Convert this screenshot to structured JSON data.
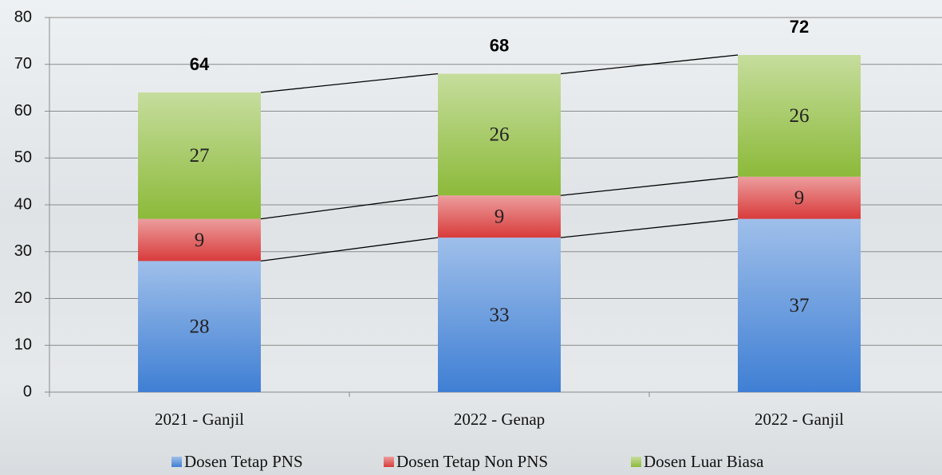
{
  "chart_data": {
    "type": "stacked-bar",
    "categories": [
      "2021 - Ganjil",
      "2022 - Genap",
      "2022 - Ganjil"
    ],
    "series": [
      {
        "name": "Dosen Tetap PNS",
        "color": "#3f7fd4",
        "values": [
          28,
          33,
          37
        ]
      },
      {
        "name": "Dosen Tetap Non PNS",
        "color": "#d93b3b",
        "values": [
          9,
          9,
          9
        ]
      },
      {
        "name": "Dosen Luar Biasa",
        "color": "#8cba3a",
        "values": [
          27,
          26,
          26
        ]
      }
    ],
    "totals": [
      64,
      68,
      72
    ],
    "ylim": [
      0,
      80
    ],
    "yticks": [
      0,
      10,
      20,
      30,
      40,
      50,
      60,
      70,
      80
    ],
    "grid": true
  }
}
